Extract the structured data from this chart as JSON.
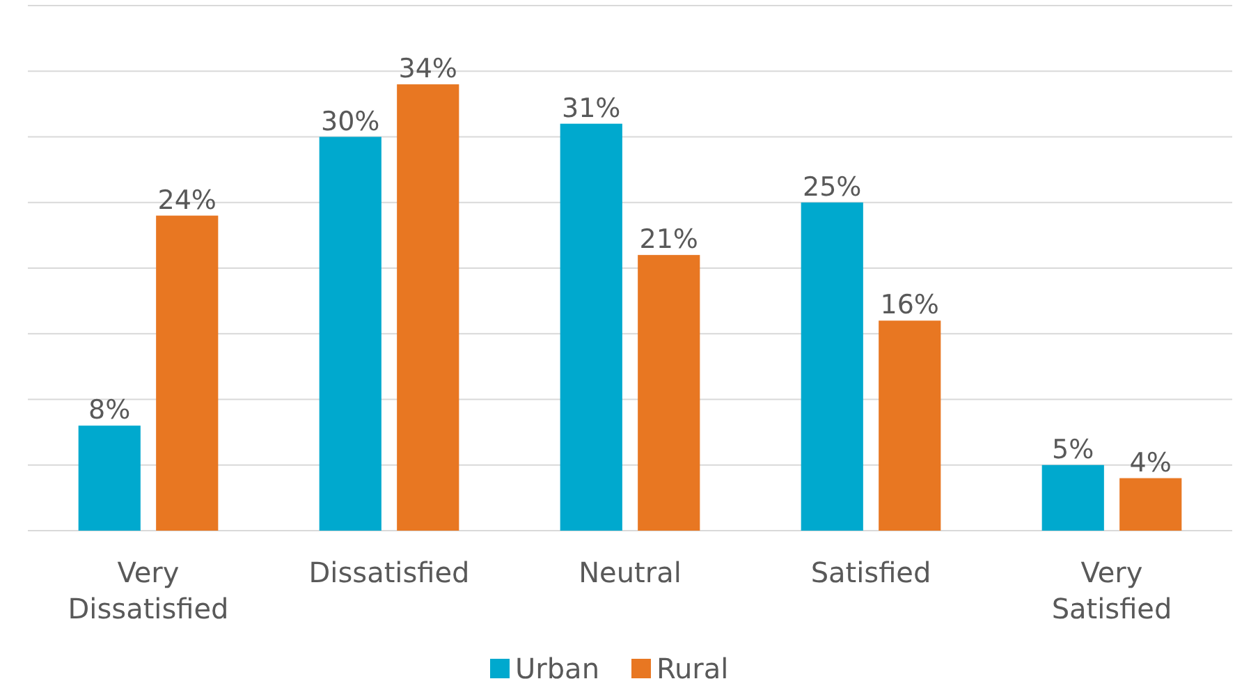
{
  "chart_data": {
    "type": "bar",
    "categories": [
      "Very Dissatisfied",
      "Dissatisfied",
      "Neutral",
      "Satisfied",
      "Very Satisfied"
    ],
    "series": [
      {
        "name": "Urban",
        "color": "#00a9ce",
        "values": [
          8,
          30,
          31,
          25,
          5
        ],
        "value_labels": [
          "8%",
          "30%",
          "31%",
          "25%",
          "5%"
        ]
      },
      {
        "name": "Rural",
        "color": "#e87722",
        "values": [
          24,
          34,
          21,
          16,
          4
        ],
        "value_labels": [
          "24%",
          "34%",
          "21%",
          "16%",
          "4%"
        ]
      }
    ],
    "ylim": [
      0,
      40
    ],
    "yticks": [
      {
        "value": 0,
        "label": null
      },
      {
        "value": 5,
        "label": null
      },
      {
        "value": 10,
        "label": null
      },
      {
        "value": 15,
        "label": null
      },
      {
        "value": 20,
        "label": null
      },
      {
        "value": 25,
        "label": null
      },
      {
        "value": 30,
        "label": null
      },
      {
        "value": 35,
        "label": null
      },
      {
        "value": 40,
        "label": null
      }
    ],
    "grid": "y",
    "tick_labels": "x",
    "legend": "bottom"
  }
}
